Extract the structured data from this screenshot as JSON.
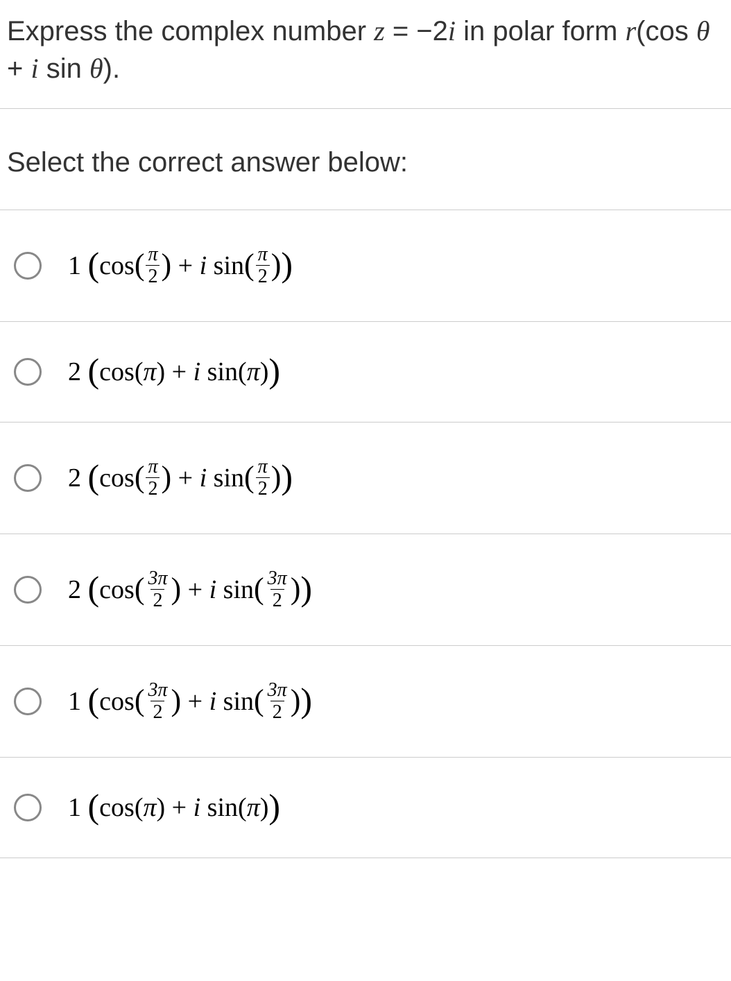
{
  "question": {
    "prompt": "Select the correct answer below:"
  },
  "options": [
    {
      "r": "1",
      "angle_num": "π",
      "angle_den": "2",
      "has_frac": true
    },
    {
      "r": "2",
      "angle_plain": "π",
      "has_frac": false
    },
    {
      "r": "2",
      "angle_num": "π",
      "angle_den": "2",
      "has_frac": true
    },
    {
      "r": "2",
      "angle_num": "3π",
      "angle_den": "2",
      "has_frac": true
    },
    {
      "r": "1",
      "angle_num": "3π",
      "angle_den": "2",
      "has_frac": true
    },
    {
      "r": "1",
      "angle_plain": "π",
      "has_frac": false
    }
  ]
}
